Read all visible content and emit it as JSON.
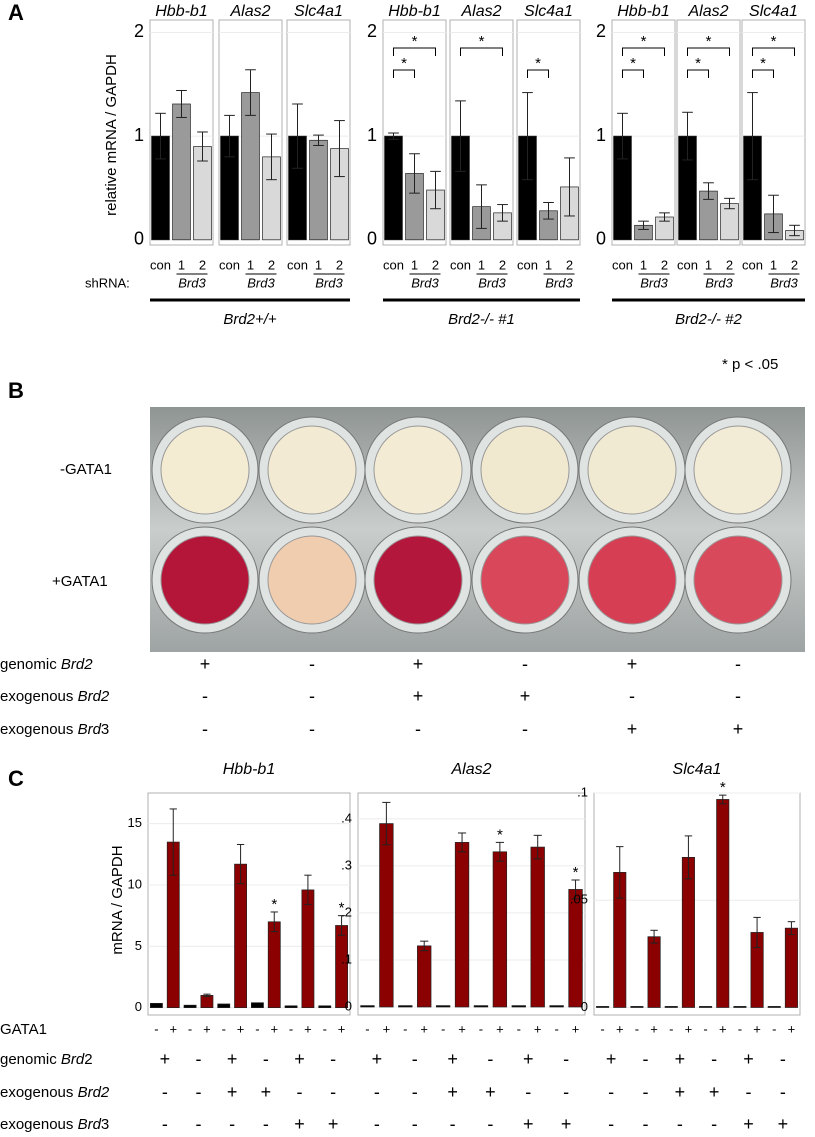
{
  "panels": [
    "A",
    "B",
    "C"
  ],
  "panel_a": {
    "ylabel": "relative mRNA / GAPDH",
    "x_prefix": "shRNA:",
    "groups": [
      "Brd2+/+",
      "Brd2-/- #1",
      "Brd2-/- #2"
    ],
    "note": "* p < .05"
  },
  "panel_b": {
    "rows": [
      "-GATA1",
      "+GATA1"
    ],
    "conditions": [
      {
        "label": [
          "genomic ",
          "Brd2"
        ],
        "signs": [
          "+",
          "-",
          "+",
          "-",
          "+",
          "-"
        ]
      },
      {
        "label": [
          "exogenous ",
          "Brd2"
        ],
        "signs": [
          "-",
          "-",
          "+",
          "+",
          "-",
          "-"
        ]
      },
      {
        "label": [
          "exogenous ",
          "Brd",
          "3"
        ],
        "signs": [
          "-",
          "-",
          "-",
          "-",
          "+",
          "+"
        ]
      }
    ]
  },
  "panel_c": {
    "ylabel": "mRNA / GAPDH",
    "row_label": "GATA1",
    "conditions": [
      {
        "label": [
          "genomic ",
          "Brd",
          "2"
        ],
        "signs": [
          "+",
          "-",
          "+",
          "-",
          "+",
          "-"
        ]
      },
      {
        "label": [
          "exogenous ",
          "Brd2"
        ],
        "signs": [
          "-",
          "-",
          "+",
          "+",
          "-",
          "-"
        ]
      },
      {
        "label": [
          "exogenous ",
          "Brd",
          "3"
        ],
        "signs": [
          "-",
          "-",
          "-",
          "-",
          "+",
          "+"
        ]
      }
    ]
  },
  "chart_data": [
    {
      "type": "bar",
      "title": "Hbb-b1",
      "categories": [
        "con",
        "1",
        "2"
      ],
      "group_label": "Brd3",
      "values": [
        1,
        1.31,
        0.9
      ],
      "errors": [
        0.22,
        0.13,
        0.14
      ],
      "colors": [
        "#000000",
        "#9a9a9a",
        "#d9d9d9"
      ],
      "ylim": [
        -0.05,
        2.12
      ],
      "yticks": [
        0,
        1,
        2
      ],
      "show_ytick_labels": true,
      "brackets": []
    },
    {
      "type": "bar",
      "title": "Alas2",
      "categories": [
        "con",
        "1",
        "2"
      ],
      "group_label": "Brd3",
      "values": [
        1,
        1.42,
        0.8
      ],
      "errors": [
        0.2,
        0.22,
        0.22
      ],
      "colors": [
        "#000000",
        "#9a9a9a",
        "#d9d9d9"
      ],
      "ylim": [
        -0.05,
        2.12
      ],
      "yticks": [
        0,
        1,
        2
      ],
      "show_ytick_labels": false,
      "brackets": []
    },
    {
      "type": "bar",
      "title": "Slc4a1",
      "categories": [
        "con",
        "1",
        "2"
      ],
      "group_label": "Brd3",
      "values": [
        1,
        0.96,
        0.88
      ],
      "errors": [
        0.31,
        0.05,
        0.27
      ],
      "colors": [
        "#000000",
        "#9a9a9a",
        "#d9d9d9"
      ],
      "ylim": [
        -0.05,
        2.12
      ],
      "yticks": [
        0,
        1,
        2
      ],
      "show_ytick_labels": false,
      "brackets": []
    },
    {
      "type": "bar",
      "title": "Hbb-b1",
      "categories": [
        "con",
        "1",
        "2"
      ],
      "group_label": "Brd3",
      "values": [
        1,
        0.64,
        0.48
      ],
      "errors": [
        0.03,
        0.19,
        0.18
      ],
      "colors": [
        "#000000",
        "#9a9a9a",
        "#d9d9d9"
      ],
      "ylim": [
        -0.05,
        2.12
      ],
      "yticks": [
        0,
        1,
        2
      ],
      "show_ytick_labels": true,
      "brackets": [
        {
          "between": [
            0,
            1
          ],
          "label": "*"
        },
        {
          "between": [
            0,
            2
          ],
          "label": "*"
        }
      ]
    },
    {
      "type": "bar",
      "title": "Alas2",
      "categories": [
        "con",
        "1",
        "2"
      ],
      "group_label": "Brd3",
      "values": [
        1,
        0.32,
        0.26
      ],
      "errors": [
        0.34,
        0.21,
        0.08
      ],
      "colors": [
        "#000000",
        "#9a9a9a",
        "#d9d9d9"
      ],
      "ylim": [
        -0.05,
        2.12
      ],
      "yticks": [
        0,
        1,
        2
      ],
      "show_ytick_labels": false,
      "brackets": [
        {
          "between": [
            0,
            2
          ],
          "label": "*"
        }
      ]
    },
    {
      "type": "bar",
      "title": "Slc4a1",
      "categories": [
        "con",
        "1",
        "2"
      ],
      "group_label": "Brd3",
      "values": [
        1,
        0.28,
        0.51
      ],
      "errors": [
        0.42,
        0.08,
        0.28
      ],
      "colors": [
        "#000000",
        "#9a9a9a",
        "#d9d9d9"
      ],
      "ylim": [
        -0.05,
        2.12
      ],
      "yticks": [
        0,
        1,
        2
      ],
      "show_ytick_labels": false,
      "brackets": [
        {
          "between": [
            0,
            1
          ],
          "label": "*"
        }
      ]
    },
    {
      "type": "bar",
      "title": "Hbb-b1",
      "categories": [
        "con",
        "1",
        "2"
      ],
      "group_label": "Brd3",
      "values": [
        1,
        0.14,
        0.22
      ],
      "errors": [
        0.22,
        0.04,
        0.04
      ],
      "colors": [
        "#000000",
        "#9a9a9a",
        "#d9d9d9"
      ],
      "ylim": [
        -0.05,
        2.12
      ],
      "yticks": [
        0,
        1,
        2
      ],
      "show_ytick_labels": true,
      "brackets": [
        {
          "between": [
            0,
            1
          ],
          "label": "*"
        },
        {
          "between": [
            0,
            2
          ],
          "label": "*"
        }
      ]
    },
    {
      "type": "bar",
      "title": "Alas2",
      "categories": [
        "con",
        "1",
        "2"
      ],
      "group_label": "Brd3",
      "values": [
        1,
        0.47,
        0.35
      ],
      "errors": [
        0.23,
        0.08,
        0.05
      ],
      "colors": [
        "#000000",
        "#9a9a9a",
        "#d9d9d9"
      ],
      "ylim": [
        -0.05,
        2.12
      ],
      "yticks": [
        0,
        1,
        2
      ],
      "show_ytick_labels": false,
      "brackets": [
        {
          "between": [
            0,
            1
          ],
          "label": "*"
        },
        {
          "between": [
            0,
            2
          ],
          "label": "*"
        }
      ]
    },
    {
      "type": "bar",
      "title": "Slc4a1",
      "categories": [
        "con",
        "1",
        "2"
      ],
      "group_label": "Brd3",
      "values": [
        1,
        0.25,
        0.09
      ],
      "errors": [
        0.42,
        0.18,
        0.05
      ],
      "colors": [
        "#000000",
        "#9a9a9a",
        "#d9d9d9"
      ],
      "ylim": [
        -0.05,
        2.12
      ],
      "yticks": [
        0,
        1,
        2
      ],
      "show_ytick_labels": false,
      "brackets": [
        {
          "between": [
            0,
            1
          ],
          "label": "*"
        },
        {
          "between": [
            0,
            2
          ],
          "label": "*"
        }
      ]
    },
    {
      "type": "bar",
      "title": "Hbb-b1",
      "categories": [
        "-",
        "+",
        "-",
        "+",
        "-",
        "+",
        "-",
        "+",
        "-",
        "+",
        "-",
        "+"
      ],
      "values": [
        0.35,
        13.5,
        0.2,
        1.0,
        0.3,
        11.7,
        0.4,
        7.0,
        0.15,
        9.6,
        0.15,
        6.7
      ],
      "errors": [
        null,
        2.7,
        null,
        0.1,
        null,
        1.6,
        null,
        0.8,
        null,
        1.2,
        null,
        0.8
      ],
      "annotations": [
        null,
        null,
        null,
        null,
        null,
        null,
        null,
        "*",
        null,
        null,
        null,
        "*"
      ],
      "colors": [
        "#000000",
        "#8b0000",
        "#000000",
        "#8b0000",
        "#000000",
        "#8b0000",
        "#000000",
        "#8b0000",
        "#000000",
        "#8b0000",
        "#000000",
        "#8b0000"
      ],
      "ylim": [
        -0.6,
        17.5
      ],
      "yticks": [
        0,
        5,
        10,
        15
      ]
    },
    {
      "type": "bar",
      "title": "Alas2",
      "categories": [
        "-",
        "+",
        "-",
        "+",
        "-",
        "+",
        "-",
        "+",
        "-",
        "+",
        "-",
        "+"
      ],
      "values": [
        0.003,
        0.39,
        0.003,
        0.13,
        0.003,
        0.35,
        0.003,
        0.33,
        0.003,
        0.34,
        0.003,
        0.25
      ],
      "errors": [
        null,
        0.045,
        null,
        0.01,
        null,
        0.02,
        null,
        0.02,
        null,
        0.025,
        null,
        0.02
      ],
      "annotations": [
        null,
        null,
        null,
        null,
        null,
        null,
        null,
        "*",
        null,
        null,
        null,
        "*"
      ],
      "colors": [
        "#000000",
        "#8b0000",
        "#000000",
        "#8b0000",
        "#000000",
        "#8b0000",
        "#000000",
        "#8b0000",
        "#000000",
        "#8b0000",
        "#000000",
        "#8b0000"
      ],
      "ylim": [
        -0.017,
        0.455
      ],
      "yticks": [
        0,
        {
          "value": 0.1,
          "label": ".1"
        },
        {
          "value": 0.2,
          "label": ".2"
        },
        {
          "value": 0.3,
          "label": ".3"
        },
        {
          "value": 0.4,
          "label": ".4"
        }
      ]
    },
    {
      "type": "bar",
      "title": "Slc4a1",
      "categories": [
        "-",
        "+",
        "-",
        "+",
        "-",
        "+",
        "-",
        "+",
        "-",
        "+",
        "-",
        "+"
      ],
      "values": [
        0.0005,
        0.063,
        0.0005,
        0.033,
        0.0005,
        0.07,
        0.0005,
        0.097,
        0.0005,
        0.035,
        0.0005,
        0.037
      ],
      "errors": [
        null,
        0.012,
        null,
        0.003,
        null,
        0.01,
        null,
        0.002,
        null,
        0.007,
        null,
        0.003
      ],
      "annotations": [
        null,
        null,
        null,
        null,
        null,
        null,
        null,
        "*",
        null,
        null,
        null,
        null
      ],
      "colors": [
        "#000000",
        "#8b0000",
        "#000000",
        "#8b0000",
        "#000000",
        "#8b0000",
        "#000000",
        "#8b0000",
        "#000000",
        "#8b0000",
        "#000000",
        "#8b0000"
      ],
      "ylim": [
        -0.0035,
        0.1
      ],
      "yticks": [
        0,
        {
          "value": 0.05,
          "label": ".05"
        },
        {
          "value": 0.1,
          "label": ".1"
        }
      ]
    }
  ]
}
